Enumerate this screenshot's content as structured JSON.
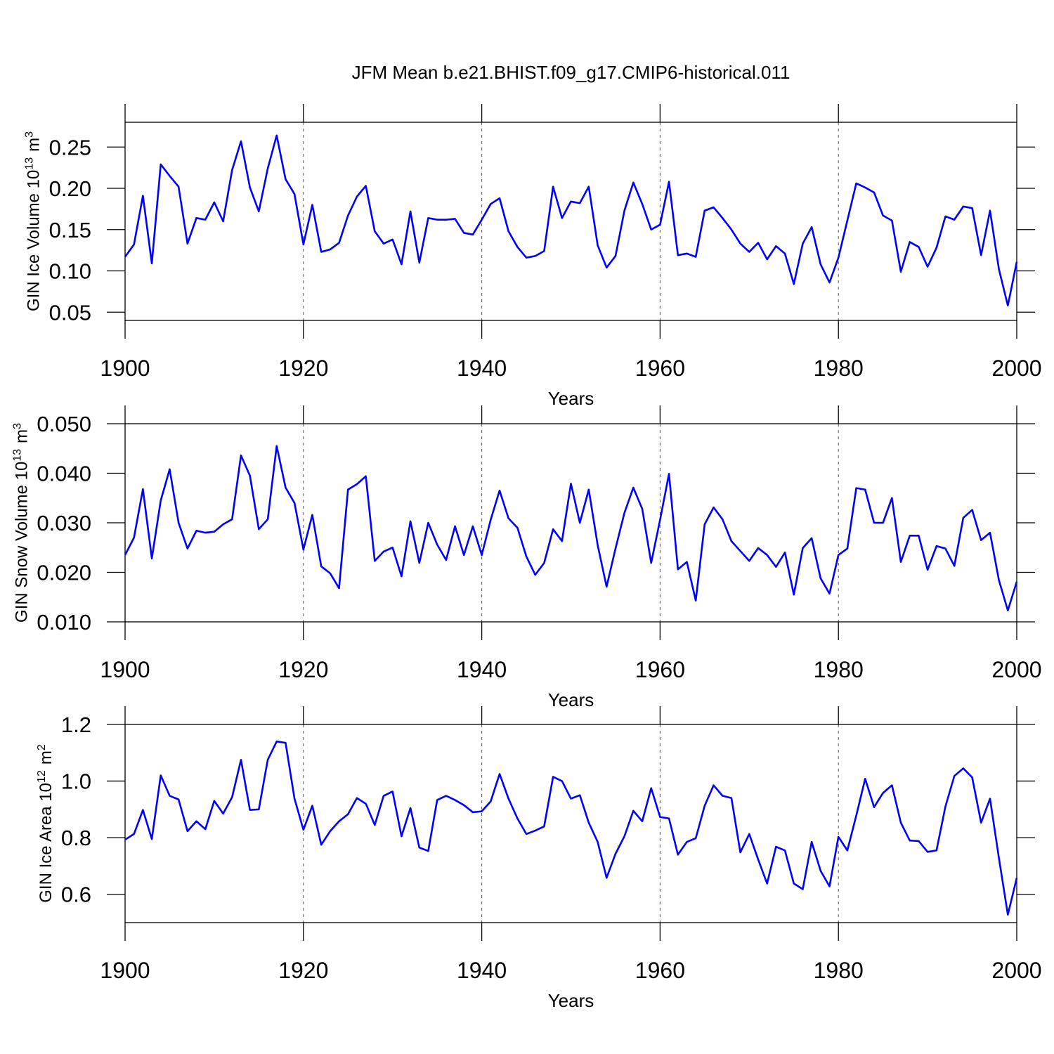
{
  "chart_data": [
    {
      "type": "line",
      "title": "JFM Mean b.e21.BHIST.f09_g17.CMIP6-historical.011",
      "xlabel": "Years",
      "ylabel": [
        {
          "text": "GIN Ice Volume 10",
          "sup": "13"
        },
        {
          "text": "m",
          "sup": "3"
        }
      ],
      "color": "#0000ff",
      "grid": "x",
      "xlim": [
        1900,
        2000
      ],
      "xticks": [
        1900,
        1920,
        1940,
        1960,
        1980,
        2000
      ],
      "ylim": [
        0.04,
        0.28
      ],
      "yticks": [
        {
          "value": 0.05,
          "label": "0.05"
        },
        {
          "value": 0.1,
          "label": "0.10"
        },
        0.15,
        {
          "value": 0.2,
          "label": "0.20"
        },
        0.25
      ],
      "x": [
        1900,
        1901,
        1902,
        1903,
        1904,
        1905,
        1906,
        1907,
        1908,
        1909,
        1910,
        1911,
        1912,
        1913,
        1914,
        1915,
        1916,
        1917,
        1918,
        1919,
        1920,
        1921,
        1922,
        1923,
        1924,
        1925,
        1926,
        1927,
        1928,
        1929,
        1930,
        1931,
        1932,
        1933,
        1934,
        1935,
        1936,
        1937,
        1938,
        1939,
        1940,
        1941,
        1942,
        1943,
        1944,
        1945,
        1946,
        1947,
        1948,
        1949,
        1950,
        1951,
        1952,
        1953,
        1954,
        1955,
        1956,
        1957,
        1958,
        1959,
        1960,
        1961,
        1962,
        1963,
        1964,
        1965,
        1966,
        1967,
        1968,
        1969,
        1970,
        1971,
        1972,
        1973,
        1974,
        1975,
        1976,
        1977,
        1978,
        1979,
        1980,
        1981,
        1982,
        1983,
        1984,
        1985,
        1986,
        1987,
        1988,
        1989,
        1990,
        1991,
        1992,
        1993,
        1994,
        1995,
        1996,
        1997,
        1998,
        1999,
        2000
      ],
      "values": [
        0.117,
        0.132,
        0.191,
        0.109,
        0.229,
        0.215,
        0.202,
        0.133,
        0.164,
        0.162,
        0.183,
        0.16,
        0.222,
        0.257,
        0.201,
        0.172,
        0.224,
        0.264,
        0.211,
        0.193,
        0.132,
        0.18,
        0.123,
        0.126,
        0.134,
        0.167,
        0.19,
        0.203,
        0.148,
        0.133,
        0.138,
        0.108,
        0.172,
        0.11,
        0.164,
        0.162,
        0.162,
        0.163,
        0.146,
        0.144,
        0.162,
        0.181,
        0.188,
        0.148,
        0.129,
        0.116,
        0.118,
        0.124,
        0.202,
        0.164,
        0.184,
        0.182,
        0.202,
        0.131,
        0.104,
        0.118,
        0.173,
        0.207,
        0.181,
        0.15,
        0.156,
        0.208,
        0.119,
        0.121,
        0.117,
        0.173,
        0.177,
        0.164,
        0.15,
        0.133,
        0.123,
        0.134,
        0.114,
        0.13,
        0.121,
        0.084,
        0.133,
        0.153,
        0.108,
        0.086,
        0.116,
        0.161,
        0.206,
        0.201,
        0.195,
        0.167,
        0.161,
        0.099,
        0.135,
        0.129,
        0.105,
        0.128,
        0.166,
        0.162,
        0.178,
        0.176,
        0.119,
        0.173,
        0.102,
        0.058,
        0.111
      ]
    },
    {
      "type": "line",
      "xlabel": "Years",
      "ylabel": [
        {
          "text": "GIN Snow Volume 10",
          "sup": "13"
        },
        {
          "text": "m",
          "sup": "3"
        }
      ],
      "color": "#0000ff",
      "grid": "x",
      "xlim": [
        1900,
        2000
      ],
      "xticks": [
        1900,
        1920,
        1940,
        1960,
        1980,
        2000
      ],
      "ylim": [
        0.01,
        0.05
      ],
      "yticks": [
        {
          "value": 0.01,
          "label": "0.010"
        },
        {
          "value": 0.02,
          "label": "0.020"
        },
        {
          "value": 0.03,
          "label": "0.030"
        },
        {
          "value": 0.04,
          "label": "0.040"
        },
        {
          "value": 0.05,
          "label": "0.050"
        }
      ],
      "x": [
        1900,
        1901,
        1902,
        1903,
        1904,
        1905,
        1906,
        1907,
        1908,
        1909,
        1910,
        1911,
        1912,
        1913,
        1914,
        1915,
        1916,
        1917,
        1918,
        1919,
        1920,
        1921,
        1922,
        1923,
        1924,
        1925,
        1926,
        1927,
        1928,
        1929,
        1930,
        1931,
        1932,
        1933,
        1934,
        1935,
        1936,
        1937,
        1938,
        1939,
        1940,
        1941,
        1942,
        1943,
        1944,
        1945,
        1946,
        1947,
        1948,
        1949,
        1950,
        1951,
        1952,
        1953,
        1954,
        1955,
        1956,
        1957,
        1958,
        1959,
        1960,
        1961,
        1962,
        1963,
        1964,
        1965,
        1966,
        1967,
        1968,
        1969,
        1970,
        1971,
        1972,
        1973,
        1974,
        1975,
        1976,
        1977,
        1978,
        1979,
        1980,
        1981,
        1982,
        1983,
        1984,
        1985,
        1986,
        1987,
        1988,
        1989,
        1990,
        1991,
        1992,
        1993,
        1994,
        1995,
        1996,
        1997,
        1998,
        1999,
        2000
      ],
      "values": [
        0.0235,
        0.027,
        0.0368,
        0.0228,
        0.0345,
        0.0408,
        0.03,
        0.0248,
        0.0284,
        0.028,
        0.0282,
        0.0297,
        0.0307,
        0.0436,
        0.0395,
        0.0287,
        0.0307,
        0.0455,
        0.0371,
        0.034,
        0.0246,
        0.0316,
        0.0212,
        0.0198,
        0.0168,
        0.0367,
        0.0378,
        0.0394,
        0.0223,
        0.0242,
        0.025,
        0.0192,
        0.0303,
        0.0219,
        0.03,
        0.0256,
        0.0225,
        0.0293,
        0.0235,
        0.0293,
        0.0235,
        0.0306,
        0.0365,
        0.0309,
        0.029,
        0.0232,
        0.0195,
        0.0219,
        0.0287,
        0.0263,
        0.0379,
        0.03,
        0.0367,
        0.0255,
        0.0171,
        0.0248,
        0.032,
        0.0371,
        0.0328,
        0.0219,
        0.0306,
        0.0399,
        0.0206,
        0.0221,
        0.0143,
        0.0297,
        0.0331,
        0.0307,
        0.0263,
        0.0243,
        0.0223,
        0.0249,
        0.0235,
        0.0211,
        0.024,
        0.0155,
        0.0249,
        0.0269,
        0.0188,
        0.0157,
        0.0235,
        0.0248,
        0.037,
        0.0367,
        0.03,
        0.03,
        0.035,
        0.0221,
        0.0274,
        0.0274,
        0.0205,
        0.0253,
        0.0248,
        0.0213,
        0.031,
        0.0326,
        0.0265,
        0.028,
        0.0184,
        0.0123,
        0.0181
      ]
    },
    {
      "type": "line",
      "xlabel": "Years",
      "ylabel": [
        {
          "text": "GIN Ice Area 10",
          "sup": "12"
        },
        {
          "text": "m",
          "sup": "2"
        }
      ],
      "color": "#0000ff",
      "grid": "x",
      "xlim": [
        1900,
        2000
      ],
      "xticks": [
        1900,
        1920,
        1940,
        1960,
        1980,
        2000
      ],
      "ylim": [
        0.5,
        1.2
      ],
      "yticks": [
        0.6,
        0.8,
        {
          "value": 1,
          "label": "1.0"
        },
        1.2
      ],
      "x": [
        1900,
        1901,
        1902,
        1903,
        1904,
        1905,
        1906,
        1907,
        1908,
        1909,
        1910,
        1911,
        1912,
        1913,
        1914,
        1915,
        1916,
        1917,
        1918,
        1919,
        1920,
        1921,
        1922,
        1923,
        1924,
        1925,
        1926,
        1927,
        1928,
        1929,
        1930,
        1931,
        1932,
        1933,
        1934,
        1935,
        1936,
        1937,
        1938,
        1939,
        1940,
        1941,
        1942,
        1943,
        1944,
        1945,
        1946,
        1947,
        1948,
        1949,
        1950,
        1951,
        1952,
        1953,
        1954,
        1955,
        1956,
        1957,
        1958,
        1959,
        1960,
        1961,
        1962,
        1963,
        1964,
        1965,
        1966,
        1967,
        1968,
        1969,
        1970,
        1971,
        1972,
        1973,
        1974,
        1975,
        1976,
        1977,
        1978,
        1979,
        1980,
        1981,
        1982,
        1983,
        1984,
        1985,
        1986,
        1987,
        1988,
        1989,
        1990,
        1991,
        1992,
        1993,
        1994,
        1995,
        1996,
        1997,
        1998,
        1999,
        2000
      ],
      "values": [
        0.793,
        0.813,
        0.898,
        0.795,
        1.02,
        0.948,
        0.935,
        0.823,
        0.858,
        0.83,
        0.93,
        0.885,
        0.943,
        1.075,
        0.898,
        0.9,
        1.075,
        1.14,
        1.135,
        0.938,
        0.828,
        0.913,
        0.775,
        0.823,
        0.858,
        0.883,
        0.94,
        0.92,
        0.845,
        0.948,
        0.963,
        0.805,
        0.905,
        0.765,
        0.753,
        0.933,
        0.948,
        0.933,
        0.915,
        0.89,
        0.893,
        0.928,
        1.025,
        0.938,
        0.868,
        0.813,
        0.825,
        0.84,
        1.015,
        1.0,
        0.938,
        0.95,
        0.853,
        0.785,
        0.658,
        0.743,
        0.805,
        0.895,
        0.858,
        0.975,
        0.873,
        0.868,
        0.74,
        0.785,
        0.798,
        0.913,
        0.985,
        0.948,
        0.94,
        0.748,
        0.813,
        0.723,
        0.638,
        0.768,
        0.755,
        0.638,
        0.618,
        0.785,
        0.683,
        0.628,
        0.803,
        0.755,
        0.878,
        1.008,
        0.908,
        0.958,
        0.985,
        0.853,
        0.79,
        0.788,
        0.75,
        0.755,
        0.91,
        1.018,
        1.045,
        1.013,
        0.853,
        0.938,
        0.728,
        0.528,
        0.658
      ]
    }
  ]
}
